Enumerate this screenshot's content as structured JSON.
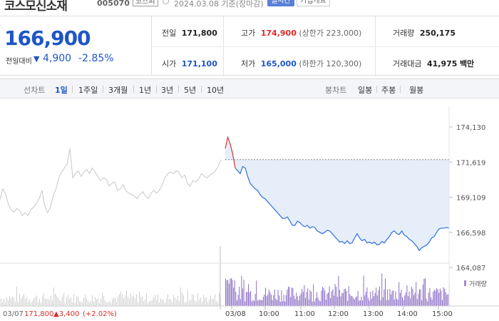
{
  "header": {
    "name": "코스모신소재",
    "code": "005070",
    "market": "코스피",
    "date_text": "2024.03.08 기준(장마감)",
    "realtime_label": "실시간",
    "overview_label": "기업개요"
  },
  "price": {
    "current": "166,900",
    "change_label": "전일대비",
    "change_arrow": "▼",
    "change": "4,900",
    "change_pct": "-2.85%"
  },
  "stats": {
    "prev_close_label": "전일",
    "prev_close": "171,800",
    "high_label": "고가",
    "high": "174,900",
    "upper_limit": "(상한가 223,000)",
    "volume_label": "거래량",
    "volume": "250,175",
    "open_label": "시가",
    "open": "171,100",
    "low_label": "저가",
    "low": "165,000",
    "lower_limit": "(하한가 120,300)",
    "amount_label": "거래대금",
    "amount": "41,975",
    "amount_unit": "백만"
  },
  "period_bar": {
    "line_label": "선차트",
    "line_periods": [
      "1일",
      "1주일",
      "3개월",
      "1년",
      "3년",
      "5년",
      "10년"
    ],
    "active_period": "1일",
    "candle_label": "봉차트",
    "candle_periods": [
      "일봉",
      "주봉",
      "월봉"
    ]
  },
  "chart_data": {
    "type": "line",
    "y_ticks": [
      "174,130",
      "171,619",
      "169,109",
      "166,598",
      "164,087"
    ],
    "ylim": [
      164087,
      174130
    ],
    "reference_line": 171800,
    "time_ticks": [
      "03/08",
      "10:00",
      "11:00",
      "12:00",
      "13:00",
      "14:00",
      "15:00"
    ],
    "volume_legend": "거래량",
    "prev_day": {
      "date": "03/07",
      "close": "171,800",
      "change": "▲3,400",
      "change_pct": "(+2.02%)"
    },
    "series": [
      {
        "name": "03/07",
        "values": [
          168950,
          169700,
          169350,
          168600,
          168200,
          168050,
          168300,
          168150,
          167800,
          168000,
          167800,
          168200,
          168400,
          168650,
          169000,
          169600,
          168500,
          168000,
          168400,
          169200,
          169700,
          170500,
          170900,
          171200,
          171500,
          172600,
          170500,
          170800,
          171000,
          170600,
          170900,
          171100,
          170800,
          171200,
          170900,
          170600,
          170300,
          170500,
          170400,
          169900,
          170100,
          170200,
          169600,
          169700,
          170000,
          169600,
          169400,
          169300,
          169200,
          169000,
          169300,
          169500,
          169200,
          169000,
          169400,
          169600,
          169400,
          169600,
          170000,
          170500,
          170800,
          170900,
          170800,
          171000,
          170900,
          170500,
          170700,
          170100,
          169900,
          170300,
          170200,
          170400,
          170800,
          170600,
          170500,
          170700,
          170800,
          171000,
          171300,
          171800
        ]
      },
      {
        "name": "03/08",
        "values": [
          172600,
          173400,
          172900,
          172200,
          171200,
          171000,
          170800,
          171300,
          171200,
          170600,
          170100,
          169900,
          169700,
          169600,
          169300,
          169100,
          169000,
          168800,
          168600,
          168400,
          168200,
          168000,
          167800,
          167600,
          167600,
          167700,
          167400,
          167100,
          167100,
          167400,
          167300,
          167100,
          167000,
          167100,
          166900,
          167000,
          166950,
          166700,
          166600,
          166500,
          166600,
          166750,
          166700,
          166500,
          166300,
          166100,
          165900,
          165950,
          165800,
          166000,
          165800,
          165850,
          166200,
          166500,
          166200,
          166000,
          166100,
          165850,
          165900,
          165800,
          165900,
          165700,
          165750,
          165950,
          165850,
          166100,
          166300,
          166600,
          166700,
          166500,
          166450,
          166700,
          166400,
          166300,
          166100,
          166000,
          165800,
          165600,
          165300,
          165500,
          165600,
          165700,
          165900,
          166200,
          166300,
          166600,
          166850,
          166900,
          166900,
          166950,
          166900
        ]
      }
    ]
  }
}
